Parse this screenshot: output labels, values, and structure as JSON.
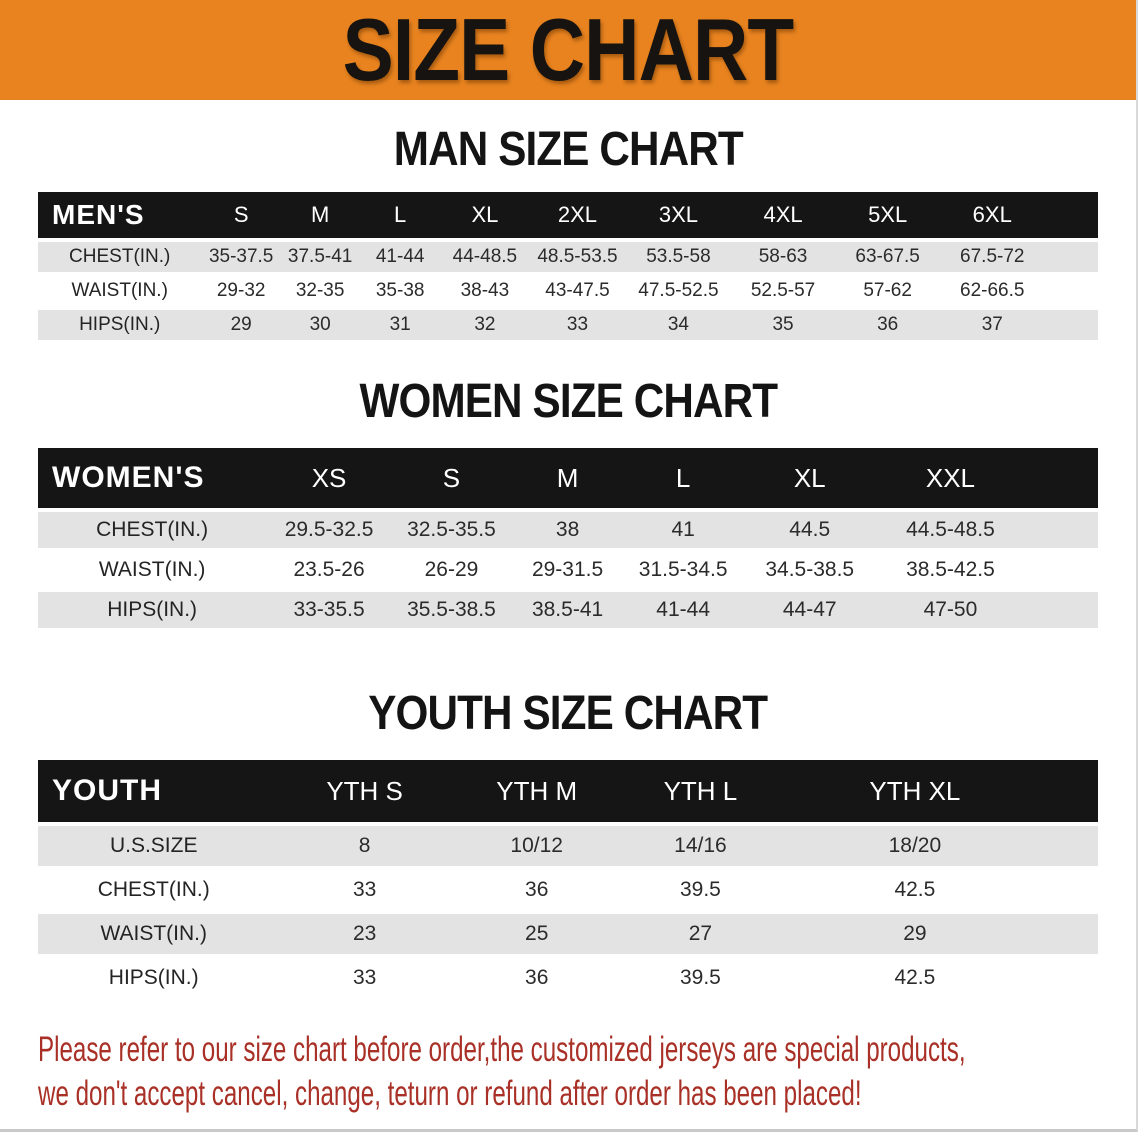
{
  "banner": {
    "title": "SIZE CHART",
    "bg_color": "#e8831f"
  },
  "chart_data": [
    {
      "type": "table",
      "id": "men",
      "title": "MAN SIZE CHART",
      "group_label": "MEN'S",
      "columns": [
        "S",
        "M",
        "L",
        "XL",
        "2XL",
        "3XL",
        "4XL",
        "5XL",
        "6XL"
      ],
      "rows": [
        {
          "label": "CHEST(IN.)",
          "values": [
            "35-37.5",
            "37.5-41",
            "41-44",
            "44-48.5",
            "48.5-53.5",
            "53.5-58",
            "58-63",
            "63-67.5",
            "67.5-72"
          ]
        },
        {
          "label": "WAIST(IN.)",
          "values": [
            "29-32",
            "32-35",
            "35-38",
            "38-43",
            "43-47.5",
            "47.5-52.5",
            "52.5-57",
            "57-62",
            "62-66.5"
          ]
        },
        {
          "label": "HIPS(IN.)",
          "values": [
            "29",
            "30",
            "31",
            "32",
            "33",
            "34",
            "35",
            "36",
            "37"
          ]
        }
      ]
    },
    {
      "type": "table",
      "id": "women",
      "title": "WOMEN SIZE CHART",
      "group_label": "WOMEN'S",
      "columns": [
        "XS",
        "S",
        "M",
        "L",
        "XL",
        "XXL"
      ],
      "rows": [
        {
          "label": "CHEST(IN.)",
          "values": [
            "29.5-32.5",
            "32.5-35.5",
            "38",
            "41",
            "44.5",
            "44.5-48.5"
          ]
        },
        {
          "label": "WAIST(IN.)",
          "values": [
            "23.5-26",
            "26-29",
            "29-31.5",
            "31.5-34.5",
            "34.5-38.5",
            "38.5-42.5"
          ]
        },
        {
          "label": "HIPS(IN.)",
          "values": [
            "33-35.5",
            "35.5-38.5",
            "38.5-41",
            "41-44",
            "44-47",
            "47-50"
          ]
        }
      ]
    },
    {
      "type": "table",
      "id": "youth",
      "title": "YOUTH SIZE CHART",
      "group_label": "YOUTH",
      "columns": [
        "YTH S",
        "YTH M",
        "YTH L",
        "YTH XL"
      ],
      "rows": [
        {
          "label": "U.S.SIZE",
          "values": [
            "8",
            "10/12",
            "14/16",
            "18/20"
          ]
        },
        {
          "label": "CHEST(IN.)",
          "values": [
            "33",
            "36",
            "39.5",
            "42.5"
          ]
        },
        {
          "label": "WAIST(IN.)",
          "values": [
            "23",
            "25",
            "27",
            "29"
          ]
        },
        {
          "label": "HIPS(IN.)",
          "values": [
            "33",
            "36",
            "39.5",
            "42.5"
          ]
        }
      ]
    }
  ],
  "disclaimer": {
    "color": "#a93026",
    "lines": [
      "Please refer to our size chart before order,the customized jerseys are special products,",
      "we don't accept cancel, change, teturn or refund after order has been placed!"
    ]
  }
}
